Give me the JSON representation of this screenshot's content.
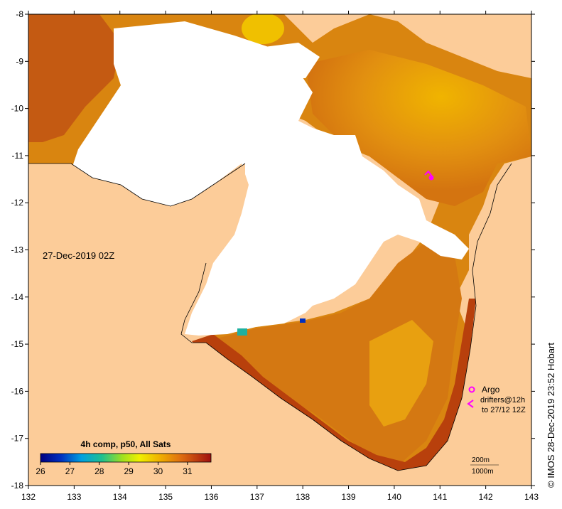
{
  "map": {
    "date_label": "27-Dec-2019 02Z",
    "copyright": "© IMOS 28-Dec-2019 23:52 Hobart",
    "x_ticks": [
      "132",
      "133",
      "134",
      "135",
      "136",
      "137",
      "138",
      "139",
      "140",
      "141",
      "142",
      "143"
    ],
    "y_ticks": [
      "-8",
      "-9",
      "-10",
      "-11",
      "-12",
      "-13",
      "-14",
      "-15",
      "-16",
      "-17",
      "-18"
    ],
    "colorbar": {
      "title": "4h comp, p50, All Sats",
      "ticks": [
        "26",
        "27",
        "28",
        "29",
        "30",
        "31"
      ],
      "range": [
        26,
        31.8
      ]
    },
    "legend": {
      "argo_label": "Argo",
      "drifters_line1": "drifters@12h",
      "drifters_line2": "to 27/12 12Z",
      "contour_200": "200m",
      "contour_1000": "1000m"
    },
    "colors": {
      "land": "#fccc99",
      "cloud": "#ffffff",
      "sst_warm": "#d87a10",
      "sst_hot": "#b8400c",
      "sst_yellow": "#f0b400",
      "argo": "#ff00ff"
    }
  }
}
